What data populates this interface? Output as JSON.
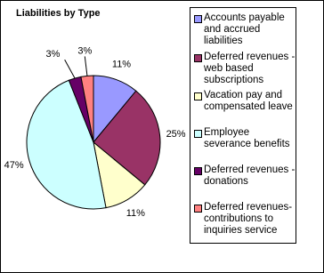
{
  "chart_data": {
    "type": "pie",
    "title": "Liabilities by Type",
    "categories": [
      "Accounts payable and accrued liabilities",
      "Deferred revenues -web based subscriptions",
      "Vacation pay and compensated leave",
      "Employee severance benefits",
      "Deferred revenues - donations",
      "Deferred revenues-contributions to inquiries service"
    ],
    "values": [
      11,
      25,
      11,
      47,
      3,
      3
    ],
    "value_labels": [
      "11%",
      "25%",
      "11%",
      "47%",
      "3%",
      "3%"
    ],
    "colors": [
      "#9999ff",
      "#993366",
      "#ffffcc",
      "#ccffff",
      "#660066",
      "#ff8080"
    ]
  }
}
